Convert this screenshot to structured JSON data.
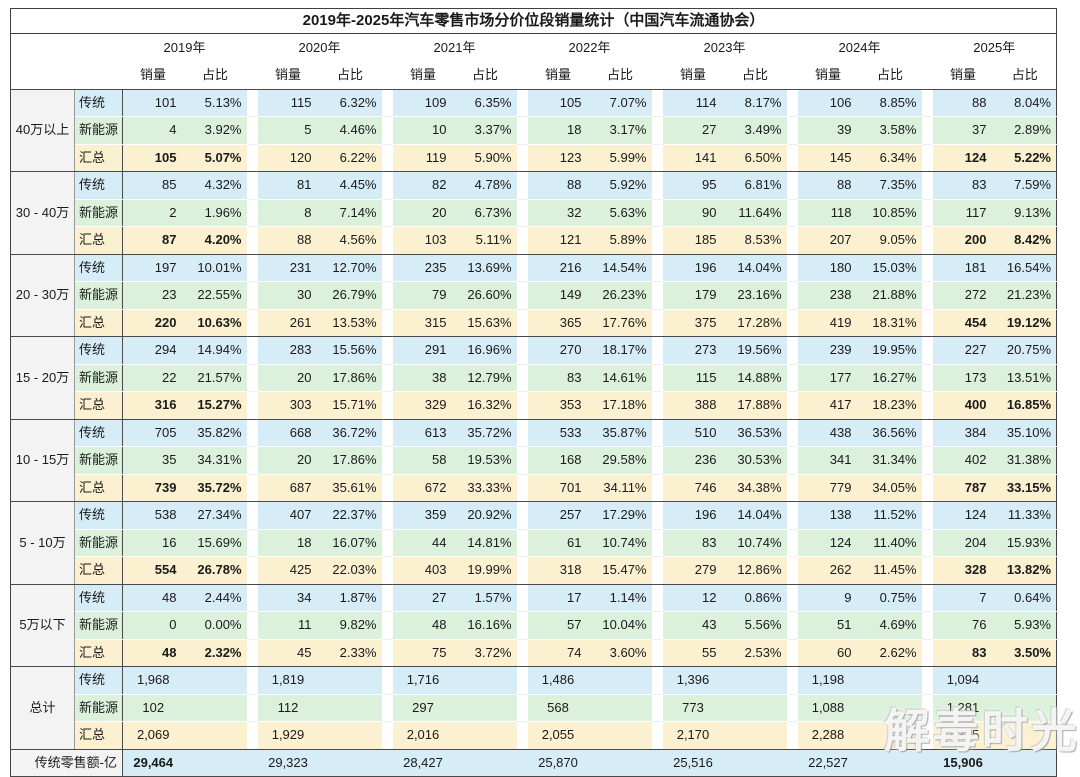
{
  "chart_data": {
    "type": "table",
    "title": "2019年-2025年汽车零售市场分价位段销量统计（中国汽车流通协会）",
    "years": [
      "2019年",
      "2020年",
      "2021年",
      "2022年",
      "2023年",
      "2024年",
      "2025年"
    ],
    "sub_headers": [
      "销量",
      "占比"
    ],
    "bold_year_indices": [
      0,
      6
    ],
    "price_groups": [
      {
        "label": "40万以上",
        "rows": [
          {
            "label": "传统",
            "sales": [
              101,
              115,
              109,
              105,
              114,
              106,
              88
            ],
            "share": [
              5.13,
              6.32,
              6.35,
              7.07,
              8.17,
              8.85,
              8.04
            ]
          },
          {
            "label": "新能源",
            "sales": [
              4,
              5,
              10,
              18,
              27,
              39,
              37
            ],
            "share": [
              3.92,
              4.46,
              3.37,
              3.17,
              3.49,
              3.58,
              2.89
            ]
          },
          {
            "label": "汇总",
            "emphasis": true,
            "sales": [
              105,
              120,
              119,
              123,
              141,
              145,
              124
            ],
            "share": [
              5.07,
              6.22,
              5.9,
              5.99,
              6.5,
              6.34,
              5.22
            ]
          }
        ]
      },
      {
        "label": "30 - 40万",
        "rows": [
          {
            "label": "传统",
            "sales": [
              85,
              81,
              82,
              88,
              95,
              88,
              83
            ],
            "share": [
              4.32,
              4.45,
              4.78,
              5.92,
              6.81,
              7.35,
              7.59
            ]
          },
          {
            "label": "新能源",
            "sales": [
              2,
              8,
              20,
              32,
              90,
              118,
              117
            ],
            "share": [
              1.96,
              7.14,
              6.73,
              5.63,
              11.64,
              10.85,
              9.13
            ]
          },
          {
            "label": "汇总",
            "emphasis": true,
            "sales": [
              87,
              88,
              103,
              121,
              185,
              207,
              200
            ],
            "share": [
              4.2,
              4.56,
              5.11,
              5.89,
              8.53,
              9.05,
              8.42
            ]
          }
        ]
      },
      {
        "label": "20 - 30万",
        "rows": [
          {
            "label": "传统",
            "sales": [
              197,
              231,
              235,
              216,
              196,
              180,
              181
            ],
            "share": [
              10.01,
              12.7,
              13.69,
              14.54,
              14.04,
              15.03,
              16.54
            ]
          },
          {
            "label": "新能源",
            "sales": [
              23,
              30,
              79,
              149,
              179,
              238,
              272
            ],
            "share": [
              22.55,
              26.79,
              26.6,
              26.23,
              23.16,
              21.88,
              21.23
            ]
          },
          {
            "label": "汇总",
            "emphasis": true,
            "sales": [
              220,
              261,
              315,
              365,
              375,
              419,
              454
            ],
            "share": [
              10.63,
              13.53,
              15.63,
              17.76,
              17.28,
              18.31,
              19.12
            ]
          }
        ]
      },
      {
        "label": "15 - 20万",
        "rows": [
          {
            "label": "传统",
            "sales": [
              294,
              283,
              291,
              270,
              273,
              239,
              227
            ],
            "share": [
              14.94,
              15.56,
              16.96,
              18.17,
              19.56,
              19.95,
              20.75
            ]
          },
          {
            "label": "新能源",
            "sales": [
              22,
              20,
              38,
              83,
              115,
              177,
              173
            ],
            "share": [
              21.57,
              17.86,
              12.79,
              14.61,
              14.88,
              16.27,
              13.51
            ]
          },
          {
            "label": "汇总",
            "emphasis": true,
            "sales": [
              316,
              303,
              329,
              353,
              388,
              417,
              400
            ],
            "share": [
              15.27,
              15.71,
              16.32,
              17.18,
              17.88,
              18.23,
              16.85
            ]
          }
        ]
      },
      {
        "label": "10 - 15万",
        "rows": [
          {
            "label": "传统",
            "sales": [
              705,
              668,
              613,
              533,
              510,
              438,
              384
            ],
            "share": [
              35.82,
              36.72,
              35.72,
              35.87,
              36.53,
              36.56,
              35.1
            ]
          },
          {
            "label": "新能源",
            "sales": [
              35,
              20,
              58,
              168,
              236,
              341,
              402
            ],
            "share": [
              34.31,
              17.86,
              19.53,
              29.58,
              30.53,
              31.34,
              31.38
            ]
          },
          {
            "label": "汇总",
            "emphasis": true,
            "sales": [
              739,
              687,
              672,
              701,
              746,
              779,
              787
            ],
            "share": [
              35.72,
              35.61,
              33.33,
              34.11,
              34.38,
              34.05,
              33.15
            ]
          }
        ]
      },
      {
        "label": "5 - 10万",
        "rows": [
          {
            "label": "传统",
            "sales": [
              538,
              407,
              359,
              257,
              196,
              138,
              124
            ],
            "share": [
              27.34,
              22.37,
              20.92,
              17.29,
              14.04,
              11.52,
              11.33
            ]
          },
          {
            "label": "新能源",
            "sales": [
              16,
              18,
              44,
              61,
              83,
              124,
              204
            ],
            "share": [
              15.69,
              16.07,
              14.81,
              10.74,
              10.74,
              11.4,
              15.93
            ]
          },
          {
            "label": "汇总",
            "emphasis": true,
            "sales": [
              554,
              425,
              403,
              318,
              279,
              262,
              328
            ],
            "share": [
              26.78,
              22.03,
              19.99,
              15.47,
              12.86,
              11.45,
              13.82
            ]
          }
        ]
      },
      {
        "label": "5万以下",
        "rows": [
          {
            "label": "传统",
            "sales": [
              48,
              34,
              27,
              17,
              12,
              9,
              7
            ],
            "share": [
              2.44,
              1.87,
              1.57,
              1.14,
              0.86,
              0.75,
              0.64
            ]
          },
          {
            "label": "新能源",
            "sales": [
              0,
              11,
              48,
              57,
              43,
              51,
              76
            ],
            "share": [
              0.0,
              9.82,
              16.16,
              10.04,
              5.56,
              4.69,
              5.93
            ]
          },
          {
            "label": "汇总",
            "emphasis": true,
            "sales": [
              48,
              45,
              75,
              74,
              55,
              60,
              83
            ],
            "share": [
              2.32,
              2.33,
              3.72,
              3.6,
              2.53,
              2.62,
              3.5
            ]
          }
        ]
      },
      {
        "label": "总计",
        "rows": [
          {
            "label": "传统",
            "sales": [
              1968,
              1819,
              1716,
              1486,
              1396,
              1198,
              1094
            ]
          },
          {
            "label": "新能源",
            "sales": [
              102,
              112,
              297,
              568,
              773,
              1088,
              1281
            ]
          },
          {
            "label": "汇总",
            "sales": [
              2069,
              1929,
              2016,
              2055,
              2170,
              2288,
              2375
            ]
          }
        ]
      }
    ],
    "footer": {
      "label": "传统零售额-亿",
      "values": [
        29464,
        29323,
        28427,
        25870,
        25516,
        22527,
        15906
      ]
    }
  },
  "watermark": "解毒时光",
  "colors": {
    "traditional_row": "#d6ecf6",
    "nev_row": "#dbf1dc",
    "subtotal_row": "#fbf0cf",
    "label_cell": "#f3f3f3",
    "border_dark": "#4a4a4a"
  }
}
